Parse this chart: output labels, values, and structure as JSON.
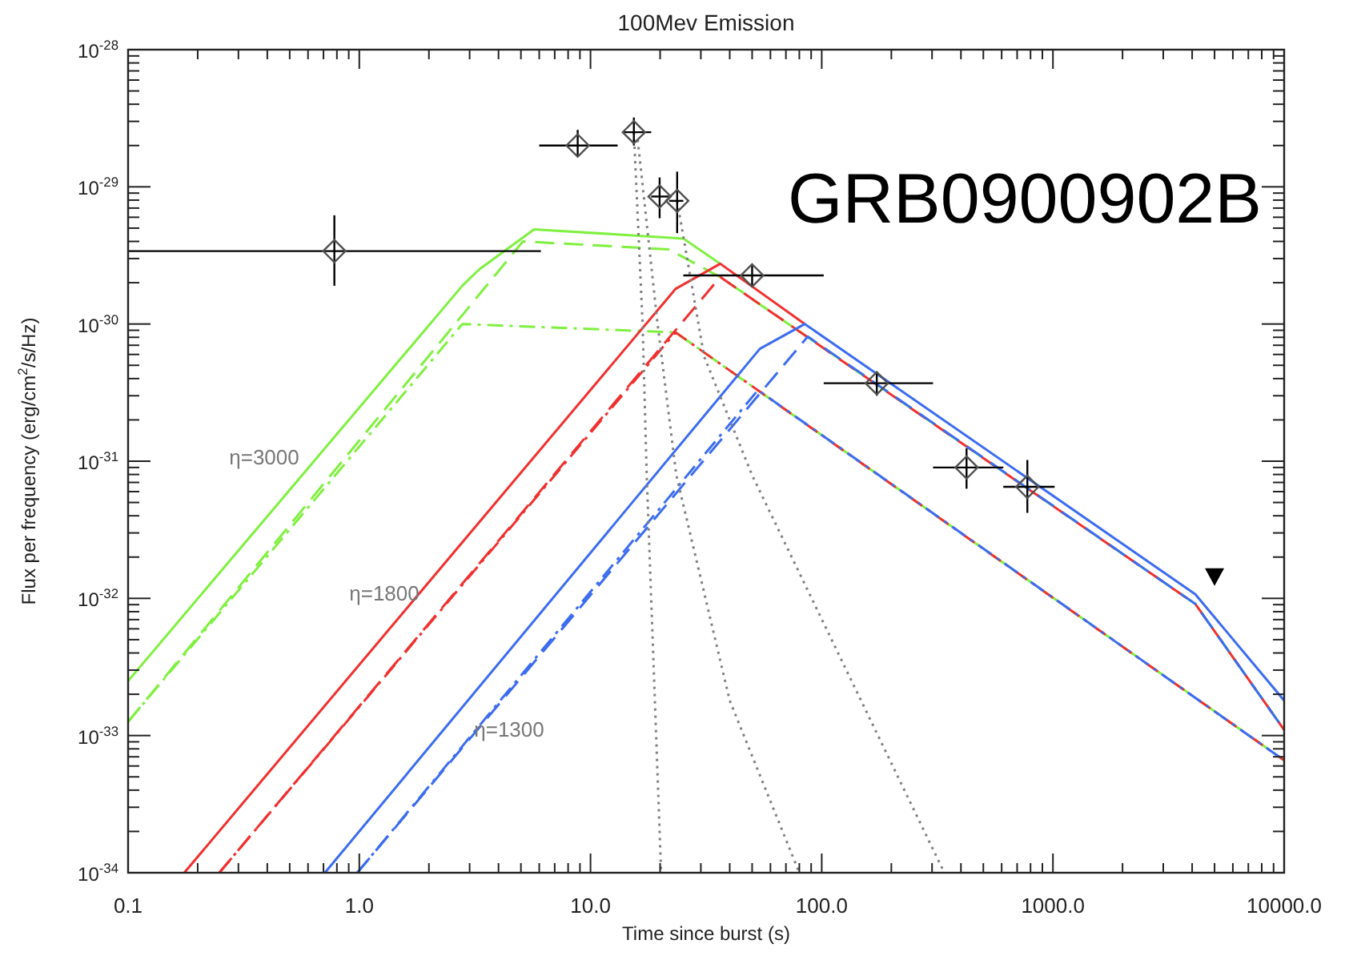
{
  "chart_data": {
    "type": "line",
    "title": "100Mev Emission",
    "xlabel": "Time since burst (s)",
    "ylabel": "Flux per frequency (erg/cm$^{2}$/s/Hz)",
    "log": "xy",
    "xlim": [
      0.1,
      10000
    ],
    "ylim": [
      1e-34,
      1e-28
    ],
    "xticks": [
      {
        "value": 0.1,
        "label": "0.1"
      },
      {
        "value": 1,
        "label": "1.0"
      },
      {
        "value": 10,
        "label": "10.0"
      },
      {
        "value": 100,
        "label": "100.0"
      },
      {
        "value": 1000,
        "label": "1000.0"
      },
      {
        "value": 10000,
        "label": "10000.0"
      }
    ],
    "yticks": [
      {
        "value": 1e-34,
        "label": "10$^{-34}$"
      },
      {
        "value": 1e-33,
        "label": "10$^{-33}$"
      },
      {
        "value": 1e-32,
        "label": "10$^{-32}$"
      },
      {
        "value": 1e-31,
        "label": "10$^{-31}$"
      },
      {
        "value": 1e-30,
        "label": "10$^{-30}$"
      },
      {
        "value": 1e-29,
        "label": "10$^{-29}$"
      },
      {
        "value": 1e-28,
        "label": "10$^{-28}$"
      }
    ],
    "series": [
      {
        "color": "#80f040",
        "line_style": "solid",
        "x": [
          0.1,
          2.79,
          3.3,
          5.7,
          25.2,
          36.4
        ],
        "values": [
          2.5e-33,
          1.9e-30,
          2.5e-30,
          4.9e-30,
          4.2e-30,
          2.75e-30
        ]
      },
      {
        "color": "#80f040",
        "line_style": "dashed",
        "x": [
          0.1,
          5.1,
          21.8,
          36.4,
          4130,
          10000
        ],
        "values": [
          1.26e-33,
          4e-30,
          3.5e-30,
          2.2e-30,
          9.1e-33,
          1.1e-33
        ]
      },
      {
        "color": "#80f040",
        "line_style": "dashdot",
        "x": [
          0.1,
          2.79,
          23.3,
          10000
        ],
        "values": [
          1.26e-33,
          1e-30,
          8.7e-31,
          6.6e-34
        ]
      },
      {
        "color": "#f03030",
        "line_style": "solid",
        "x": [
          0.175,
          23.3,
          36.4,
          84.5
        ],
        "values": [
          1e-34,
          1.8e-30,
          2.75e-30,
          1e-30
        ]
      },
      {
        "color": "#f03030",
        "line_style": "dashed",
        "x": [
          0.248,
          36.4,
          4130,
          10000
        ],
        "values": [
          1e-34,
          2.2e-30,
          9.1e-33,
          1.1e-33
        ]
      },
      {
        "color": "#f03030",
        "line_style": "dashdot",
        "x": [
          0.248,
          23.3,
          10000
        ],
        "values": [
          1e-34,
          8.7e-31,
          6.6e-34
        ]
      },
      {
        "color": "#3c6cf0",
        "line_style": "solid",
        "x": [
          0.71,
          54,
          84.5,
          4130,
          10000
        ],
        "values": [
          1e-34,
          6.6e-31,
          1e-30,
          1.07e-32,
          1.8e-33
        ]
      },
      {
        "color": "#3c6cf0",
        "line_style": "dashed",
        "x": [
          0.98,
          87,
          4130,
          10000
        ],
        "values": [
          1e-34,
          8.1e-31,
          9.1e-33,
          1.1e-33
        ]
      },
      {
        "color": "#3c6cf0",
        "line_style": "dashdot",
        "x": [
          0.98,
          53,
          10000
        ],
        "values": [
          1e-34,
          3.3e-31,
          6.6e-34
        ]
      },
      {
        "color": "#808080",
        "line_style": "dotted",
        "x": [
          15.4,
          16.8,
          17.5,
          20.2
        ],
        "values": [
          2.5e-29,
          1e-30,
          7.9e-32,
          1e-34
        ]
      },
      {
        "color": "#808080",
        "line_style": "dotted",
        "x": [
          16,
          19.5,
          23.5,
          40,
          80
        ],
        "values": [
          2.2e-29,
          1e-30,
          7.9e-32,
          1.8e-33,
          1e-34
        ]
      },
      {
        "color": "#808080",
        "line_style": "dotted",
        "x": [
          23.7,
          31,
          50,
          339
        ],
        "values": [
          7.9e-30,
          5.8e-31,
          7.9e-32,
          1e-34
        ]
      },
      {
        "type": "scatter",
        "color": "#505050",
        "marker": "diamond",
        "x": [
          0.78,
          8.8,
          15.4,
          19.9,
          23.7,
          50,
          173,
          423,
          775
        ],
        "values": [
          3.4e-30,
          2e-29,
          2.5e-29,
          8.5e-30,
          7.9e-30,
          2.26e-30,
          3.7e-31,
          9e-32,
          6.5e-32
        ],
        "errors": [
          [
            1.9e-30,
            6.2e-30
          ],
          [
            1.66e-29,
            2.6e-29
          ],
          [
            2e-29,
            3.2e-29
          ],
          [
            5.9e-30,
            1.17e-29
          ],
          [
            4.6e-30,
            1.29e-29
          ],
          [
            1.9e-30,
            2.66e-30
          ],
          [
            3e-31,
            4.5e-31
          ],
          [
            6.3e-32,
            1.24e-31
          ],
          [
            4.2e-32,
            1.02e-31
          ]
        ],
        "xerrors": [
          [
            0.1,
            6.1
          ],
          [
            6.0,
            13.1
          ],
          [
            14,
            18.3
          ],
          [
            18.3,
            21.8
          ],
          [
            21.9,
            25.2
          ],
          [
            25.2,
            102
          ],
          [
            102,
            303
          ],
          [
            303,
            610
          ],
          [
            610,
            1017
          ]
        ]
      },
      {
        "type": "scatter",
        "color": "#000000",
        "marker": "triangle",
        "x": [
          5000
        ],
        "values": [
          1.45e-32
        ]
      }
    ],
    "annotations": [
      "η=3000",
      "η=1800",
      "η=1300",
      "GRB0900902B"
    ]
  }
}
